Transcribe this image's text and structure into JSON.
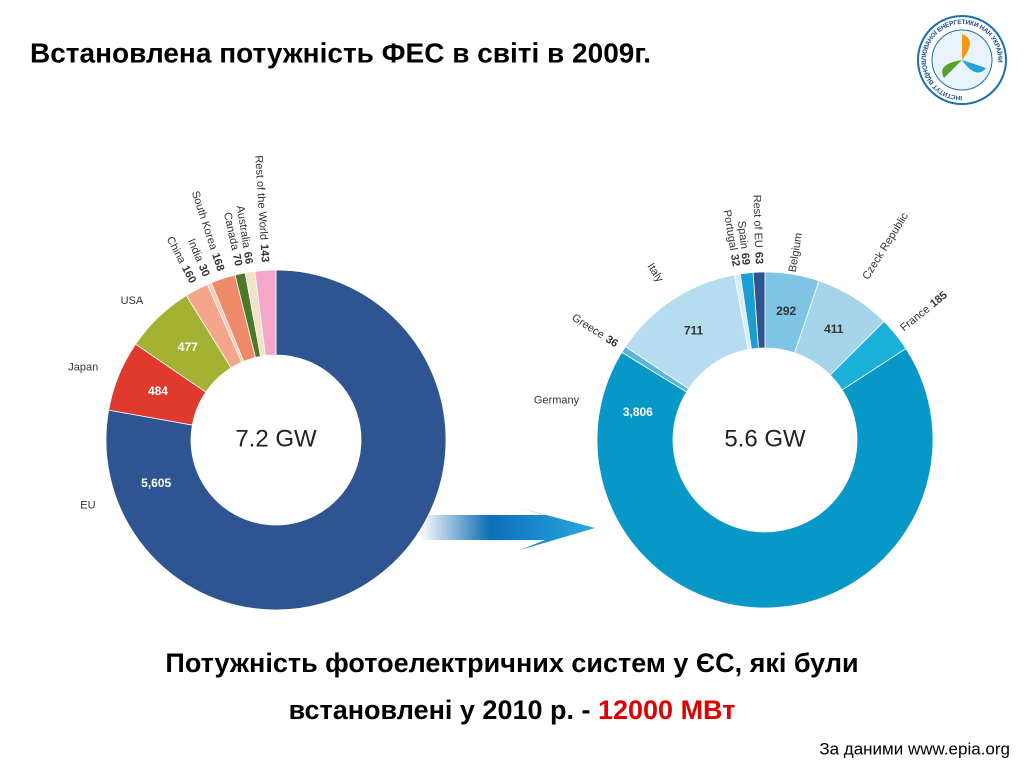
{
  "title": "Встановлена потужність ФЕС  в світі  в 2009г.",
  "logo_text": "ІНСТИТУТ ВІДНОВЛЮВАНОЇ ЕНЕРГЕТИКИ НАН УКРАЇНИ",
  "summary": {
    "line1": "Потужність фотоелектричних систем у ЄС, які були",
    "line2": "встановлені  у 2010 р. - ",
    "highlight": "12000 МВт"
  },
  "source": "За даними www.epia.org",
  "chart_data": [
    {
      "type": "donut",
      "center_label": "7.2 GW",
      "categories": [
        "EU",
        "Japan",
        "USA",
        "China",
        "India",
        "South Korea",
        "Canada",
        "Australia",
        "Rest of the World"
      ],
      "values": [
        5605,
        484,
        477,
        160,
        30,
        168,
        70,
        66,
        143
      ],
      "value_labels": [
        "5,605",
        "484",
        "477",
        "160",
        "30",
        "168",
        "70",
        "66",
        "143"
      ],
      "colors": [
        "#2e5591",
        "#e03a2f",
        "#a3b232",
        "#f4a58a",
        "#f9cbb5",
        "#ee8a6a",
        "#4d7a2a",
        "#f4e2c8",
        "#f4a7c8"
      ]
    },
    {
      "type": "donut",
      "center_label": "5.6 GW",
      "categories": [
        "Belgium",
        "Czeck Republic",
        "France",
        "Germany",
        "Greece",
        "Italy",
        "Portugal",
        "Spain",
        "Rest of EU"
      ],
      "values": [
        292,
        411,
        185,
        3806,
        36,
        711,
        32,
        69,
        63
      ],
      "value_labels": [
        "292",
        "411",
        "185",
        "3,806",
        "36",
        "711",
        "32",
        "69",
        "63"
      ],
      "colors": [
        "#7ec4e4",
        "#a4d3ea",
        "#1ab0d8",
        "#0898c8",
        "#5bb4dc",
        "#b5dcef",
        "#d8eef8",
        "#1a9fd4",
        "#2e5591"
      ]
    }
  ]
}
